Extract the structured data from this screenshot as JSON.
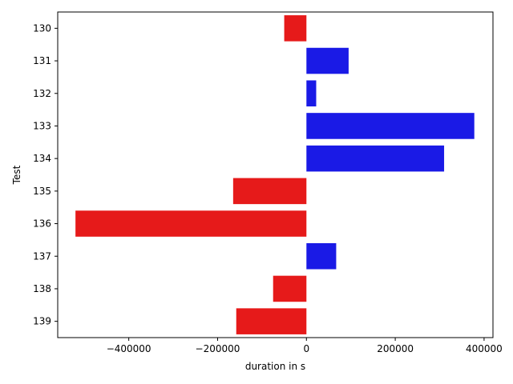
{
  "chart_data": {
    "type": "bar",
    "orientation": "horizontal",
    "xlabel": "duration in s",
    "ylabel": "Test",
    "categories": [
      "130",
      "131",
      "132",
      "133",
      "134",
      "135",
      "136",
      "137",
      "138",
      "139"
    ],
    "values": [
      -50000,
      95000,
      22000,
      378000,
      310000,
      -165000,
      -520000,
      67000,
      -75000,
      -158000
    ],
    "xlim": [
      -560000,
      420000
    ],
    "xticks": [
      -400000,
      -200000,
      0,
      200000,
      400000
    ],
    "xtick_labels": [
      "−400000",
      "−200000",
      "0",
      "200000",
      "400000"
    ],
    "colors": {
      "positive": "#1a1ae6",
      "negative": "#e61a1a"
    },
    "grid": false,
    "legend": "none"
  }
}
